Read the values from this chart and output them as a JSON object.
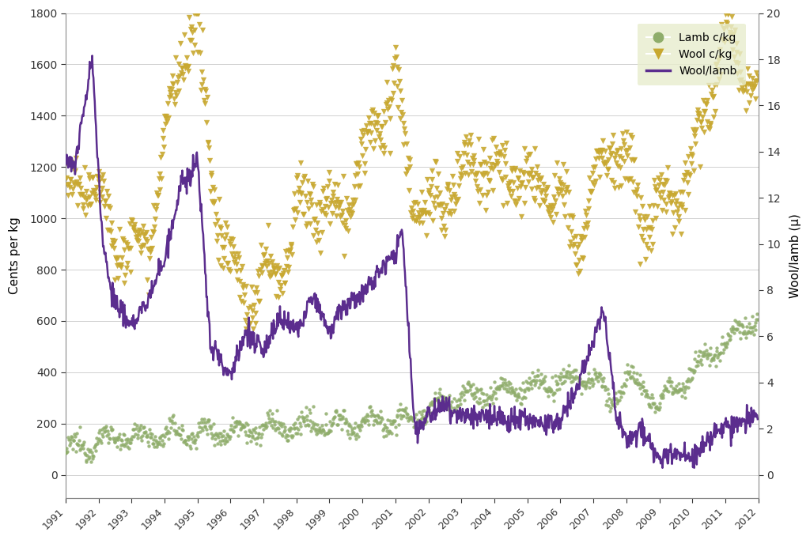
{
  "ylabel_left": "Cents per kg",
  "ylabel_right": "Wool/lamb (μ)",
  "ylim_left": [
    -90,
    1800
  ],
  "ylim_right": [
    0,
    20
  ],
  "yticks_left": [
    0,
    200,
    400,
    600,
    800,
    1000,
    1200,
    1400,
    1600,
    1800
  ],
  "yticks_right": [
    0,
    2,
    4,
    6,
    8,
    10,
    12,
    14,
    16,
    18,
    20
  ],
  "xlim": [
    1991.0,
    2012.0
  ],
  "lamb_color": "#8fad6b",
  "wool_color": "#c8a830",
  "ratio_color": "#5b2d8e",
  "legend_bg": "#e8edcd",
  "background_color": "#ffffff",
  "grid_color": "#d0d0d0"
}
